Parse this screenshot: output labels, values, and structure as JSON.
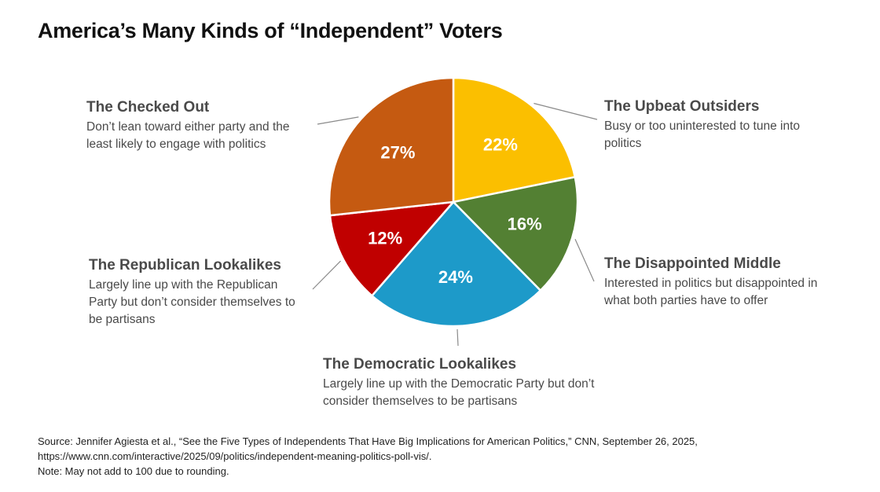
{
  "title": "America’s Many Kinds of “Independent” Voters",
  "chart_data": {
    "type": "pie",
    "title": "America’s Many Kinds of “Independent” Voters",
    "slices": [
      {
        "name": "The Upbeat Outsiders",
        "value": 22,
        "label": "22%",
        "color": "#FBBF00",
        "description": "Busy or too uninterested to tune into politics"
      },
      {
        "name": "The Disappointed Middle",
        "value": 16,
        "label": "16%",
        "color": "#538033",
        "description": "Interested in politics but disappointed in what both parties have to offer"
      },
      {
        "name": "The Democratic Lookalikes",
        "value": 24,
        "label": "24%",
        "color": "#1D9AC9",
        "description": "Largely line up with the Democratic Party but don’t consider themselves to be partisans"
      },
      {
        "name": "The Republican Lookalikes",
        "value": 12,
        "label": "12%",
        "color": "#C00000",
        "description": "Largely line up with the Republican Party but don’t consider themselves to be partisans"
      },
      {
        "name": "The Checked Out",
        "value": 27,
        "label": "27%",
        "color": "#C55A11",
        "description": "Don’t lean toward either party and the least likely to engage with politics"
      }
    ]
  },
  "footer": {
    "source": "Source: Jennifer Agiesta et al., “See the Five Types of Independents That Have Big Implications for American Politics,” CNN, September 26, 2025, https://www.cnn.com/interactive/2025/09/politics/independent-meaning-politics-poll-vis/.",
    "note": "Note: May not add to 100 due to rounding."
  }
}
